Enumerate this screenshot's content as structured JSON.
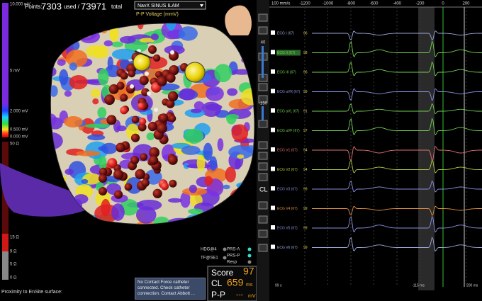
{
  "map_panel": {
    "points_label": "Points:",
    "points_used": 7303,
    "used_label": "used /",
    "points_total": 73971,
    "total_label": "total",
    "map_name": "NavX SINUS ILAM",
    "map_type": "P-P Voltage (mmV)",
    "voltage_scale": [
      "10.000 mV",
      "5 mV",
      "2.000 mV",
      "0.500 mV",
      "0.000 mV"
    ],
    "impedance_scale": [
      "50 Ω",
      "15 Ω",
      "9 Ω",
      "5 Ω",
      "0 Ω"
    ],
    "proximity_label": "Proximity to EnSite surface:",
    "indicators": [
      "HDG@4",
      "TF@SE1",
      "PRS-A",
      "PRS-P",
      "Resp"
    ],
    "message": "No Contact Force catheter connected. Check catheter connection. Contact Abbott ...",
    "score": {
      "score_label": "Score",
      "score_value": 97,
      "cl_label": "CL",
      "cl_value": 659,
      "cl_unit": "ms",
      "pp_label": "P-P",
      "pp_value": "---",
      "pp_unit": "mV"
    }
  },
  "toolbar": {
    "zoom": "40",
    "offset": "-150",
    "cl": "CL"
  },
  "ecg_panel": {
    "speed": "100 mm/s",
    "time_ticks": [
      -1200,
      -1000,
      -800,
      -600,
      -400,
      -200,
      0,
      200
    ],
    "channels": [
      {
        "name": "ECG I (67)",
        "value": "96"
      },
      {
        "name": "ECG II (67)",
        "value": "98"
      },
      {
        "name": "ECG III (67)",
        "value": "96"
      },
      {
        "name": "ECG aVR (67)",
        "value": "99"
      },
      {
        "name": "ECG aVL (67)",
        "value": "91"
      },
      {
        "name": "ECG aVF (67)",
        "value": "97"
      },
      {
        "name": "ECG V1 (67)",
        "value": "94"
      },
      {
        "name": "ECG V2 (67)",
        "value": "94"
      },
      {
        "name": "ECG V3 (67)",
        "value": "99"
      },
      {
        "name": "ECG V4 (67)",
        "value": "99"
      },
      {
        "name": "ECG V5 (67)",
        "value": "99"
      },
      {
        "name": "ECG V6 (67)",
        "value": "99"
      }
    ],
    "footer": [
      "99 s",
      "-115 ms",
      "200 ms"
    ]
  }
}
